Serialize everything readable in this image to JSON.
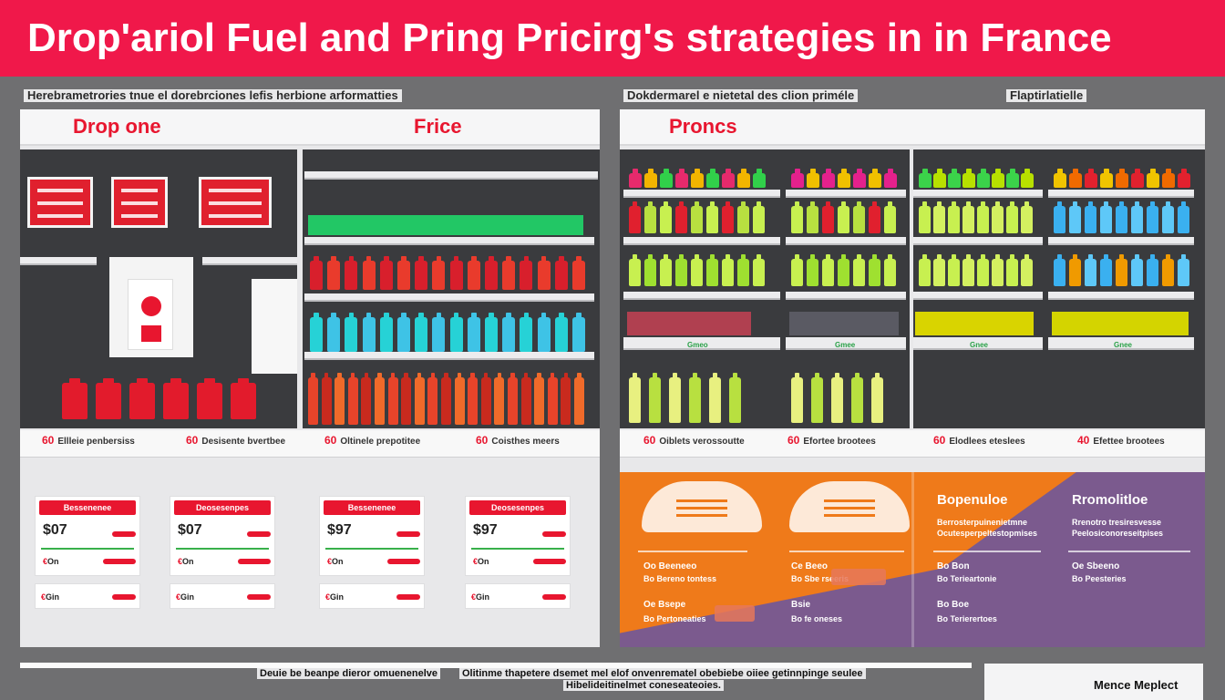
{
  "title": "Drop'ariol Fuel and Pring Pricirg's strategies in in France",
  "subheads": {
    "left": "Herebrametrories tnue el dorebrciones lefis herbione arformatties",
    "middle": "Dokdermarel e nietetal des clion priméle",
    "right": "Flaptirlatielle"
  },
  "left_panel": {
    "header_left": "Drop one",
    "header_right": "Frice",
    "price_tags": [
      {
        "num": "60",
        "text": "Ellleie penbersiss"
      },
      {
        "num": "60",
        "text": "Desisente bvertbee"
      },
      {
        "num": "60",
        "text": "Oltinele prepotitee"
      },
      {
        "num": "60",
        "text": "Coisthes meers"
      }
    ],
    "cards": [
      {
        "title": "Bessenenee",
        "price": "$07",
        "small1": "On",
        "small2": "Gin"
      },
      {
        "title": "Deosesenpes",
        "price": "$07",
        "small1": "On",
        "small2": "Gin"
      },
      {
        "title": "Bessenenee",
        "price": "$97",
        "small1": "On",
        "small2": "Gin"
      },
      {
        "title": "Deosesenpes",
        "price": "$97",
        "small1": "On",
        "small2": "Gin"
      }
    ]
  },
  "right_panel": {
    "header": "Proncs",
    "price_tags": [
      {
        "num": "60",
        "text": "Oiblets verossoutte"
      },
      {
        "num": "60",
        "text": "Efortee brootees"
      },
      {
        "num": "60",
        "text": "Elodlees eteslees"
      },
      {
        "num": "40",
        "text": "Efettee brootees"
      }
    ],
    "shelf_labels": [
      "Gmeo",
      "Gmee",
      "Gnee",
      "Gnee"
    ],
    "promo_left": [
      {
        "head": "Oo Beeneeo",
        "sub": "Bo Bereno tontess"
      },
      {
        "head": "Ce Beeo",
        "sub": "Bo Sbe rseeris"
      },
      {
        "head": "Oe Bsepe",
        "sub": "Bo Pertoneaties"
      },
      {
        "head": "Bsie",
        "sub": "Bo fe oneses"
      }
    ],
    "promo_right_title_1": "Bopenuloe",
    "promo_right_title_2": "Rromolitloe",
    "promo_right_lines_1": [
      "Berrosterpuinenietmne",
      "Ocutesperpeltestopmises"
    ],
    "promo_right_lines_2": [
      "Rrenotro tresiresvesse",
      "Peelosiconoreseitpises"
    ],
    "promo_right_items": [
      {
        "head": "Bo Bon",
        "sub": "Bo Terieartonie"
      },
      {
        "head": "Oe Sbeeno",
        "sub": "Bo Peesteries"
      },
      {
        "head": "Bo Boe",
        "sub": "Bo Terierertoes"
      }
    ]
  },
  "footer": {
    "left": "Deuie be beanpe dieror omuenenelve",
    "center": "Olitinme thapetere dsemet mel elof onvenrematel obebiebe oiiee getinnpinge seulee",
    "center2": "Hibelideitinelmet coneseateoies.",
    "brand": "Mence Meplect"
  },
  "colors": {
    "brand_red": "#f0184a",
    "accent_red": "#e8162f",
    "orange": "#ef7a1a",
    "purple": "#7b5a8e",
    "dark_shelf": "#3a3b3e"
  }
}
